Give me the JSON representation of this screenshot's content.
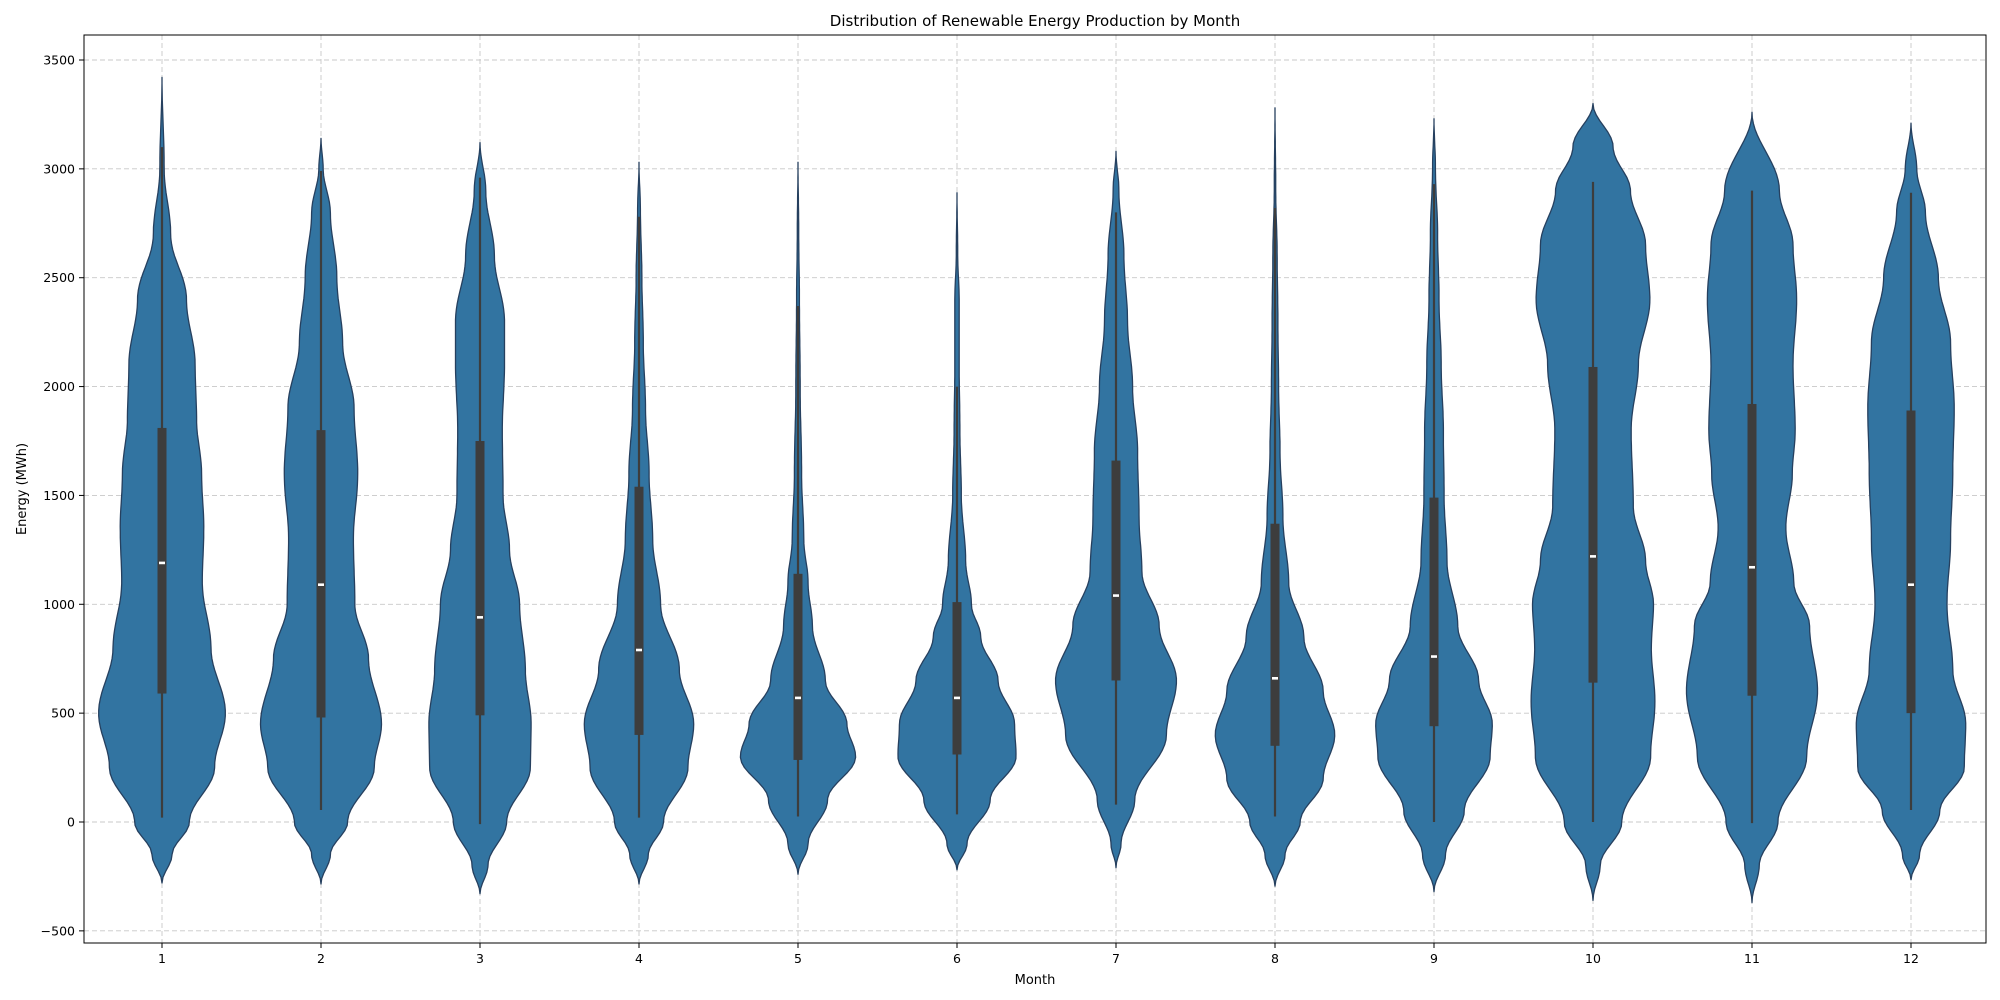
{
  "chart_data": {
    "type": "violin",
    "title": "Distribution of Renewable Energy Production by Month",
    "xlabel": "Month",
    "ylabel": "Energy (MWh)",
    "ylim": [
      -550,
      3600
    ],
    "yticks": [
      -500,
      0,
      500,
      1000,
      1500,
      2000,
      2500,
      3000,
      3500
    ],
    "grid": true,
    "fill_color": "#3274a1",
    "edge_color": "#26405f",
    "box_color": "#3d3d3d",
    "categories": [
      "1",
      "2",
      "3",
      "4",
      "5",
      "6",
      "7",
      "8",
      "9",
      "10",
      "11",
      "12"
    ],
    "violins": [
      {
        "category": "1",
        "kde_min": -280,
        "kde_max": 3420,
        "whisker_low": 20,
        "whisker_high": 3100,
        "q1": 590,
        "median": 1190,
        "q3": 1810,
        "profile": [
          [
            -280,
            0.0
          ],
          [
            -150,
            0.14
          ],
          [
            0,
            0.38
          ],
          [
            250,
            0.73
          ],
          [
            500,
            0.88
          ],
          [
            800,
            0.68
          ],
          [
            1100,
            0.56
          ],
          [
            1350,
            0.58
          ],
          [
            1600,
            0.55
          ],
          [
            1850,
            0.48
          ],
          [
            2100,
            0.46
          ],
          [
            2400,
            0.34
          ],
          [
            2700,
            0.12
          ],
          [
            3000,
            0.03
          ],
          [
            3420,
            0.0
          ]
        ]
      },
      {
        "category": "2",
        "kde_min": -285,
        "kde_max": 3140,
        "whisker_low": 55,
        "whisker_high": 2990,
        "q1": 480,
        "median": 1090,
        "q3": 1800,
        "profile": [
          [
            -285,
            0.0
          ],
          [
            -150,
            0.13
          ],
          [
            0,
            0.37
          ],
          [
            250,
            0.74
          ],
          [
            450,
            0.84
          ],
          [
            750,
            0.66
          ],
          [
            1000,
            0.47
          ],
          [
            1300,
            0.45
          ],
          [
            1600,
            0.51
          ],
          [
            1900,
            0.46
          ],
          [
            2200,
            0.3
          ],
          [
            2500,
            0.22
          ],
          [
            2800,
            0.13
          ],
          [
            3000,
            0.03
          ],
          [
            3140,
            0.0
          ]
        ]
      },
      {
        "category": "3",
        "kde_min": -330,
        "kde_max": 3120,
        "whisker_low": -10,
        "whisker_high": 2960,
        "q1": 490,
        "median": 940,
        "q3": 1750,
        "profile": [
          [
            -330,
            0.0
          ],
          [
            -200,
            0.11
          ],
          [
            0,
            0.37
          ],
          [
            250,
            0.7
          ],
          [
            450,
            0.71
          ],
          [
            700,
            0.63
          ],
          [
            1000,
            0.55
          ],
          [
            1250,
            0.41
          ],
          [
            1500,
            0.32
          ],
          [
            1800,
            0.31
          ],
          [
            2100,
            0.34
          ],
          [
            2300,
            0.34
          ],
          [
            2600,
            0.2
          ],
          [
            2900,
            0.08
          ],
          [
            3120,
            0.0
          ]
        ]
      },
      {
        "category": "4",
        "kde_min": -285,
        "kde_max": 3030,
        "whisker_low": 20,
        "whisker_high": 2780,
        "q1": 400,
        "median": 790,
        "q3": 1540,
        "profile": [
          [
            -285,
            0.0
          ],
          [
            -150,
            0.13
          ],
          [
            0,
            0.34
          ],
          [
            250,
            0.68
          ],
          [
            450,
            0.76
          ],
          [
            700,
            0.56
          ],
          [
            1000,
            0.3
          ],
          [
            1300,
            0.19
          ],
          [
            1600,
            0.14
          ],
          [
            1900,
            0.09
          ],
          [
            2200,
            0.06
          ],
          [
            2500,
            0.04
          ],
          [
            2800,
            0.02
          ],
          [
            3030,
            0.0
          ]
        ]
      },
      {
        "category": "5",
        "kde_min": -240,
        "kde_max": 3030,
        "whisker_low": 25,
        "whisker_high": 2370,
        "q1": 285,
        "median": 570,
        "q3": 1140,
        "profile": [
          [
            -240,
            0.0
          ],
          [
            -100,
            0.14
          ],
          [
            100,
            0.41
          ],
          [
            300,
            0.8
          ],
          [
            450,
            0.68
          ],
          [
            650,
            0.38
          ],
          [
            900,
            0.2
          ],
          [
            1100,
            0.14
          ],
          [
            1300,
            0.08
          ],
          [
            1600,
            0.05
          ],
          [
            2000,
            0.03
          ],
          [
            2400,
            0.02
          ],
          [
            2700,
            0.01
          ],
          [
            3030,
            0.0
          ]
        ]
      },
      {
        "category": "6",
        "kde_min": -220,
        "kde_max": 2890,
        "whisker_low": 35,
        "whisker_high": 2000,
        "q1": 310,
        "median": 570,
        "q3": 1010,
        "profile": [
          [
            -220,
            0.0
          ],
          [
            -100,
            0.14
          ],
          [
            100,
            0.46
          ],
          [
            300,
            0.82
          ],
          [
            450,
            0.8
          ],
          [
            650,
            0.57
          ],
          [
            850,
            0.33
          ],
          [
            1000,
            0.2
          ],
          [
            1200,
            0.12
          ],
          [
            1500,
            0.06
          ],
          [
            1800,
            0.04
          ],
          [
            2100,
            0.03
          ],
          [
            2400,
            0.03
          ],
          [
            2600,
            0.01
          ],
          [
            2890,
            0.0
          ]
        ]
      },
      {
        "category": "7",
        "kde_min": -210,
        "kde_max": 3080,
        "whisker_low": 80,
        "whisker_high": 2800,
        "q1": 650,
        "median": 1040,
        "q3": 1660,
        "profile": [
          [
            -210,
            0.0
          ],
          [
            -100,
            0.07
          ],
          [
            100,
            0.26
          ],
          [
            400,
            0.7
          ],
          [
            650,
            0.84
          ],
          [
            900,
            0.6
          ],
          [
            1150,
            0.36
          ],
          [
            1400,
            0.32
          ],
          [
            1700,
            0.3
          ],
          [
            2000,
            0.23
          ],
          [
            2300,
            0.16
          ],
          [
            2600,
            0.11
          ],
          [
            2900,
            0.04
          ],
          [
            3080,
            0.0
          ]
        ]
      },
      {
        "category": "8",
        "kde_min": -295,
        "kde_max": 3280,
        "whisker_low": 25,
        "whisker_high": 2820,
        "q1": 350,
        "median": 660,
        "q3": 1370,
        "profile": [
          [
            -295,
            0.0
          ],
          [
            -150,
            0.14
          ],
          [
            0,
            0.35
          ],
          [
            200,
            0.67
          ],
          [
            400,
            0.83
          ],
          [
            600,
            0.67
          ],
          [
            850,
            0.4
          ],
          [
            1100,
            0.19
          ],
          [
            1400,
            0.11
          ],
          [
            1700,
            0.07
          ],
          [
            2000,
            0.05
          ],
          [
            2300,
            0.04
          ],
          [
            2600,
            0.03
          ],
          [
            2900,
            0.01
          ],
          [
            3280,
            0.0
          ]
        ]
      },
      {
        "category": "9",
        "kde_min": -320,
        "kde_max": 3230,
        "whisker_low": 0,
        "whisker_high": 2930,
        "q1": 440,
        "median": 760,
        "q3": 1490,
        "profile": [
          [
            -320,
            0.0
          ],
          [
            -150,
            0.16
          ],
          [
            50,
            0.42
          ],
          [
            300,
            0.78
          ],
          [
            450,
            0.81
          ],
          [
            650,
            0.62
          ],
          [
            900,
            0.33
          ],
          [
            1200,
            0.18
          ],
          [
            1500,
            0.14
          ],
          [
            1800,
            0.13
          ],
          [
            2100,
            0.1
          ],
          [
            2400,
            0.07
          ],
          [
            2700,
            0.05
          ],
          [
            3000,
            0.02
          ],
          [
            3230,
            0.0
          ]
        ]
      },
      {
        "category": "10",
        "kde_min": -360,
        "kde_max": 3300,
        "whisker_low": 0,
        "whisker_high": 2940,
        "q1": 640,
        "median": 1220,
        "q3": 2090,
        "profile": [
          [
            -360,
            0.0
          ],
          [
            -200,
            0.1
          ],
          [
            0,
            0.4
          ],
          [
            300,
            0.8
          ],
          [
            550,
            0.86
          ],
          [
            800,
            0.81
          ],
          [
            1000,
            0.84
          ],
          [
            1200,
            0.73
          ],
          [
            1450,
            0.56
          ],
          [
            1800,
            0.53
          ],
          [
            2100,
            0.63
          ],
          [
            2400,
            0.79
          ],
          [
            2650,
            0.73
          ],
          [
            2900,
            0.52
          ],
          [
            3100,
            0.28
          ],
          [
            3300,
            0.0
          ]
        ]
      },
      {
        "category": "11",
        "kde_min": -370,
        "kde_max": 3260,
        "whisker_low": -5,
        "whisker_high": 2900,
        "q1": 580,
        "median": 1170,
        "q3": 1920,
        "profile": [
          [
            -370,
            0.0
          ],
          [
            -200,
            0.1
          ],
          [
            0,
            0.36
          ],
          [
            300,
            0.76
          ],
          [
            600,
            0.91
          ],
          [
            900,
            0.8
          ],
          [
            1100,
            0.58
          ],
          [
            1350,
            0.47
          ],
          [
            1600,
            0.56
          ],
          [
            1800,
            0.6
          ],
          [
            2100,
            0.57
          ],
          [
            2400,
            0.62
          ],
          [
            2650,
            0.57
          ],
          [
            2900,
            0.38
          ],
          [
            3260,
            0.0
          ]
        ]
      },
      {
        "category": "12",
        "kde_min": -265,
        "kde_max": 3210,
        "whisker_low": 55,
        "whisker_high": 2890,
        "q1": 500,
        "median": 1090,
        "q3": 1890,
        "profile": [
          [
            -265,
            0.0
          ],
          [
            -150,
            0.12
          ],
          [
            50,
            0.4
          ],
          [
            250,
            0.74
          ],
          [
            450,
            0.76
          ],
          [
            700,
            0.58
          ],
          [
            1000,
            0.5
          ],
          [
            1300,
            0.55
          ],
          [
            1600,
            0.58
          ],
          [
            1900,
            0.6
          ],
          [
            2200,
            0.55
          ],
          [
            2500,
            0.38
          ],
          [
            2800,
            0.2
          ],
          [
            3000,
            0.08
          ],
          [
            3210,
            0.0
          ]
        ]
      }
    ]
  }
}
